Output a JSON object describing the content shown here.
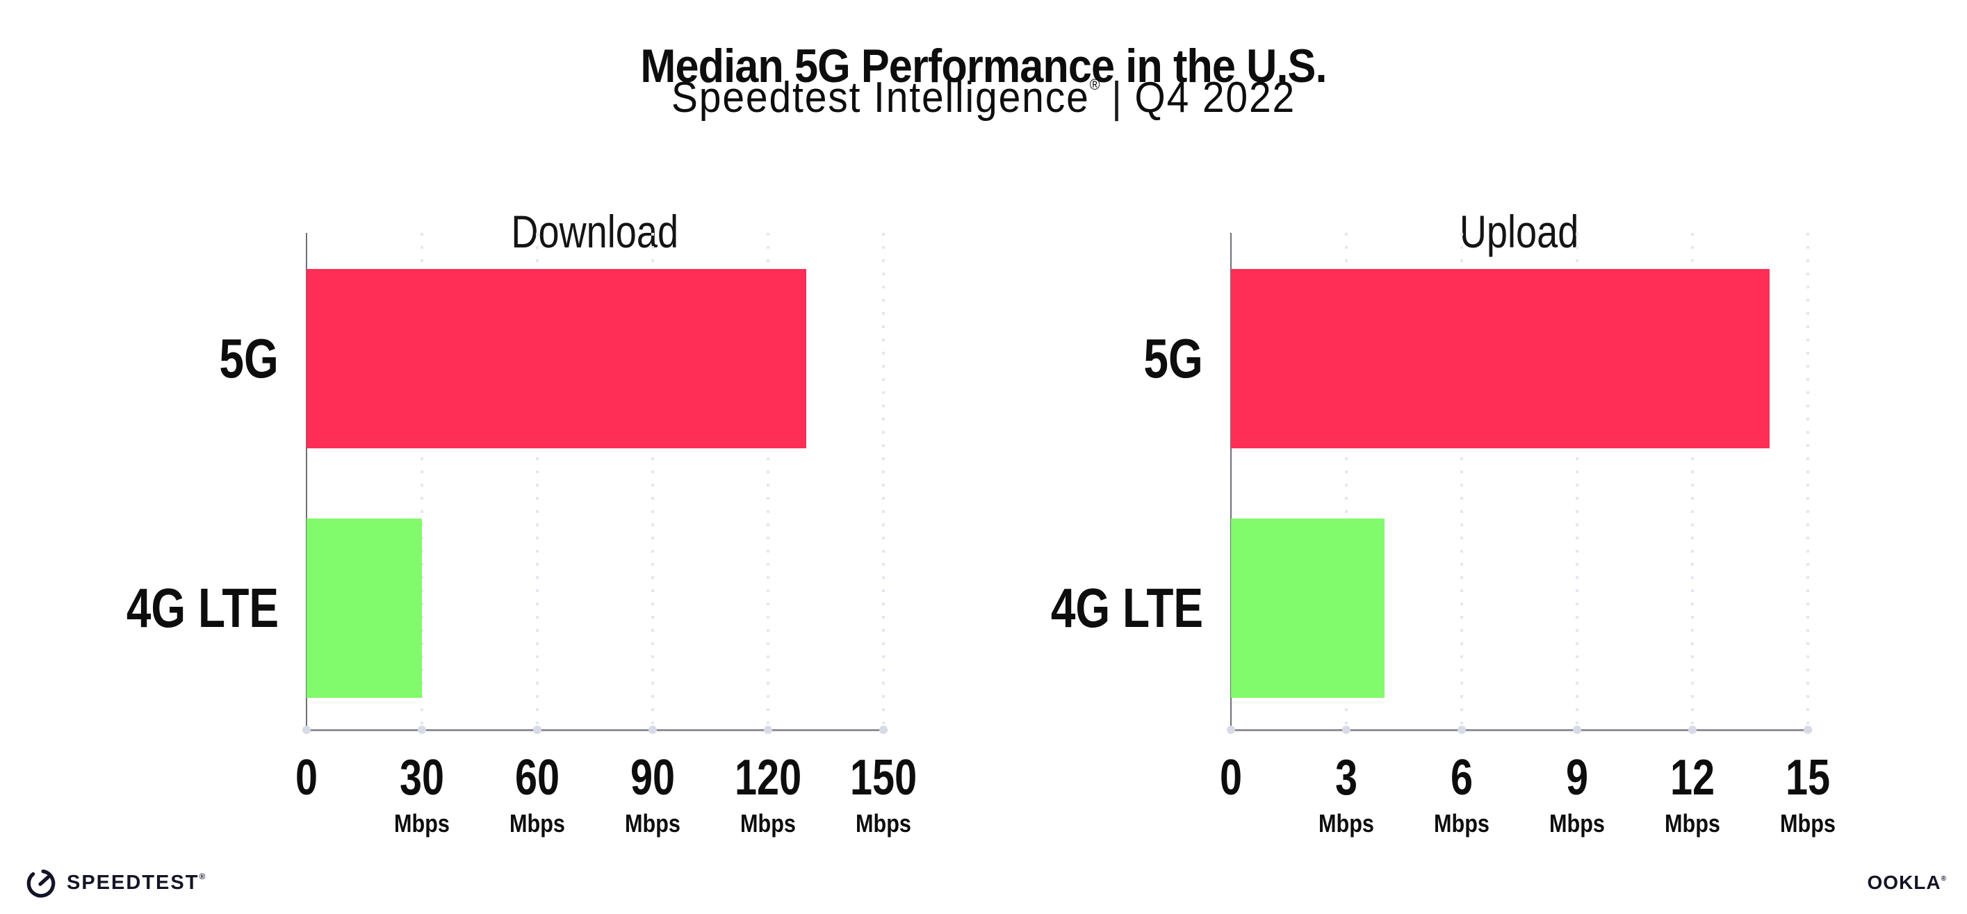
{
  "page": {
    "title": "Median 5G Performance in the U.S.",
    "subtitle": {
      "product": "Speedtest Intelligence",
      "registered": "®",
      "separator": "|",
      "period": "Q4 2022"
    },
    "footer": {
      "speedtest_logo_text": "SPEEDTEST",
      "speedtest_trademark": "®",
      "ookla_logo_text": "OOKLA",
      "ookla_trademark": "®"
    }
  },
  "colors": {
    "bar_5g": "#ff2e57",
    "bar_4g_lte": "#81fa6b",
    "x_axis_line": "#90909a",
    "y_axis_line": "#6f6f78",
    "gridline_dots": "#e4e6f0",
    "tick_dots": "#d7dae7",
    "text": "#0d0d0d",
    "logo_text": "#131426"
  },
  "chart_data": [
    {
      "type": "bar",
      "orientation": "horizontal",
      "title": "Download",
      "categories": [
        "5G",
        "4G LTE"
      ],
      "values": [
        130,
        30
      ],
      "unit": "Mbps",
      "xlim": [
        0,
        150
      ],
      "xticks": [
        0,
        30,
        60,
        90,
        120,
        150
      ],
      "tick_unit_label": "Mbps",
      "grid": "vertical dotted gridlines at each tick",
      "legend": "none",
      "bar_colors": [
        "#ff2e57",
        "#81fa6b"
      ]
    },
    {
      "type": "bar",
      "orientation": "horizontal",
      "title": "Upload",
      "categories": [
        "5G",
        "4G LTE"
      ],
      "values": [
        14,
        4
      ],
      "unit": "Mbps",
      "xlim": [
        0,
        15
      ],
      "xticks": [
        0,
        3,
        6,
        9,
        12,
        15
      ],
      "tick_unit_label": "Mbps",
      "grid": "vertical dotted gridlines at each tick",
      "legend": "none",
      "bar_colors": [
        "#ff2e57",
        "#81fa6b"
      ]
    }
  ]
}
